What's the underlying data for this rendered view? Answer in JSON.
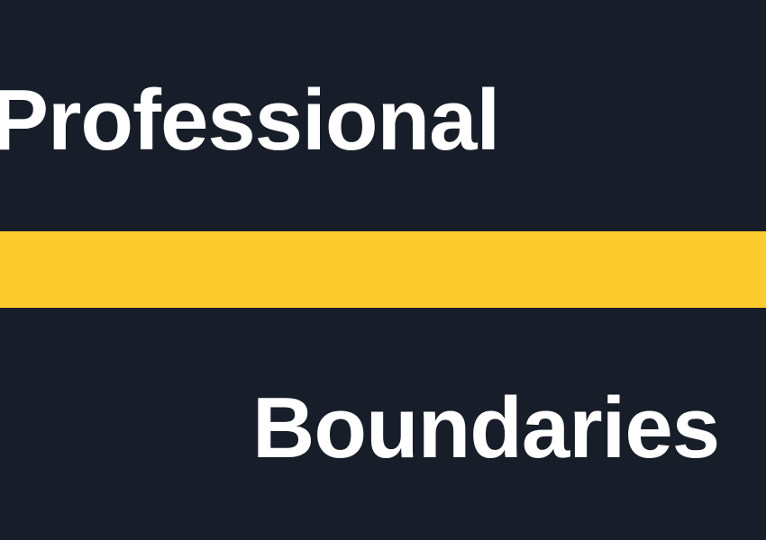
{
  "text": {
    "top_word": "Professional",
    "bottom_word": "Boundaries"
  },
  "colors": {
    "background": "#181e29",
    "stripe": "#fccb2d",
    "text": "#ffffff"
  }
}
